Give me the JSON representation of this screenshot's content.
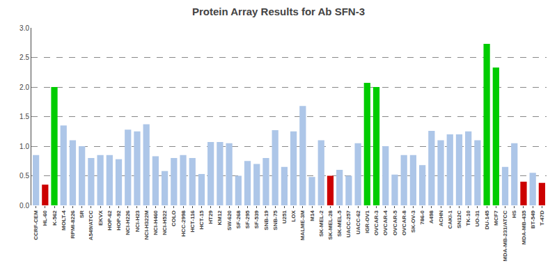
{
  "chart_data": {
    "type": "bar",
    "title": "Protein Array Results for Ab SFN-3",
    "categories": [
      "CCRF-CEM",
      "HL-60",
      "K-562",
      "MOLT-4",
      "RPMI-8226",
      "SR",
      "A549/ATCC",
      "EKVX",
      "HOP-62",
      "HOP-92",
      "NCI-H226",
      "NCI-H23",
      "NCI-H322M",
      "NCI-H460",
      "NCI-H522",
      "COLO",
      "HCC-2998",
      "HCT-116",
      "HCT-15",
      "HT29",
      "KM12",
      "SW-620",
      "SF-268",
      "SF-295",
      "SF-539",
      "SNB-19",
      "SNB-75",
      "U251",
      "LOX",
      "MALME-3M",
      "M14",
      "SK-MEL-2",
      "SK-MEL-28",
      "SK-MEL-5",
      "UACC-257",
      "UACC-62",
      "IGR-OV1",
      "OVCAR-3",
      "OVCAR-4",
      "OVCAR-5",
      "OVCAR-8",
      "SK-OV-3",
      "786-0",
      "A498",
      "ACHN",
      "CAKI-1",
      "SN12C",
      "TK-10",
      "UO-31",
      "DU-145",
      "MCF7",
      "MDA-MB-231/ATCC",
      "HS",
      "MDA-MB-435",
      "BT-549",
      "T-47D"
    ],
    "values": [
      0.85,
      0.35,
      2.0,
      1.35,
      1.1,
      1.0,
      0.8,
      0.85,
      0.85,
      0.78,
      1.28,
      1.25,
      1.37,
      0.83,
      0.58,
      0.8,
      0.85,
      0.8,
      0.53,
      1.07,
      1.07,
      1.05,
      0.5,
      0.75,
      0.7,
      0.8,
      1.27,
      0.65,
      1.25,
      1.68,
      0.48,
      1.1,
      0.5,
      0.6,
      0.5,
      1.05,
      2.07,
      2.0,
      1.0,
      0.52,
      0.85,
      0.85,
      0.68,
      1.26,
      1.1,
      1.2,
      1.2,
      1.25,
      1.1,
      2.73,
      2.33,
      0.65,
      1.05,
      0.4,
      0.55,
      0.38
    ],
    "colors": [
      "#adc6e8",
      "#cc0000",
      "#00cc00",
      "#adc6e8",
      "#adc6e8",
      "#adc6e8",
      "#adc6e8",
      "#adc6e8",
      "#adc6e8",
      "#adc6e8",
      "#adc6e8",
      "#adc6e8",
      "#adc6e8",
      "#adc6e8",
      "#adc6e8",
      "#adc6e8",
      "#adc6e8",
      "#adc6e8",
      "#adc6e8",
      "#adc6e8",
      "#adc6e8",
      "#adc6e8",
      "#adc6e8",
      "#adc6e8",
      "#adc6e8",
      "#adc6e8",
      "#adc6e8",
      "#adc6e8",
      "#adc6e8",
      "#adc6e8",
      "#adc6e8",
      "#adc6e8",
      "#cc0000",
      "#adc6e8",
      "#adc6e8",
      "#adc6e8",
      "#00cc00",
      "#00cc00",
      "#adc6e8",
      "#adc6e8",
      "#adc6e8",
      "#adc6e8",
      "#adc6e8",
      "#adc6e8",
      "#adc6e8",
      "#adc6e8",
      "#adc6e8",
      "#adc6e8",
      "#adc6e8",
      "#00cc00",
      "#00cc00",
      "#adc6e8",
      "#adc6e8",
      "#cc0000",
      "#adc6e8",
      "#cc0000"
    ],
    "ylim": [
      0.0,
      3.0
    ],
    "yticks": [
      {
        "value": 0.0,
        "label": "0.0"
      },
      {
        "value": 0.5,
        "label": "0.5"
      },
      {
        "value": 1.0,
        "label": "1.0"
      },
      {
        "value": 1.5,
        "label": "1.5"
      },
      {
        "value": 2.0,
        "label": "2.0"
      },
      {
        "value": 2.5,
        "label": "2.5"
      },
      {
        "value": 3.0,
        "label": "3.0"
      }
    ],
    "grid": true
  }
}
